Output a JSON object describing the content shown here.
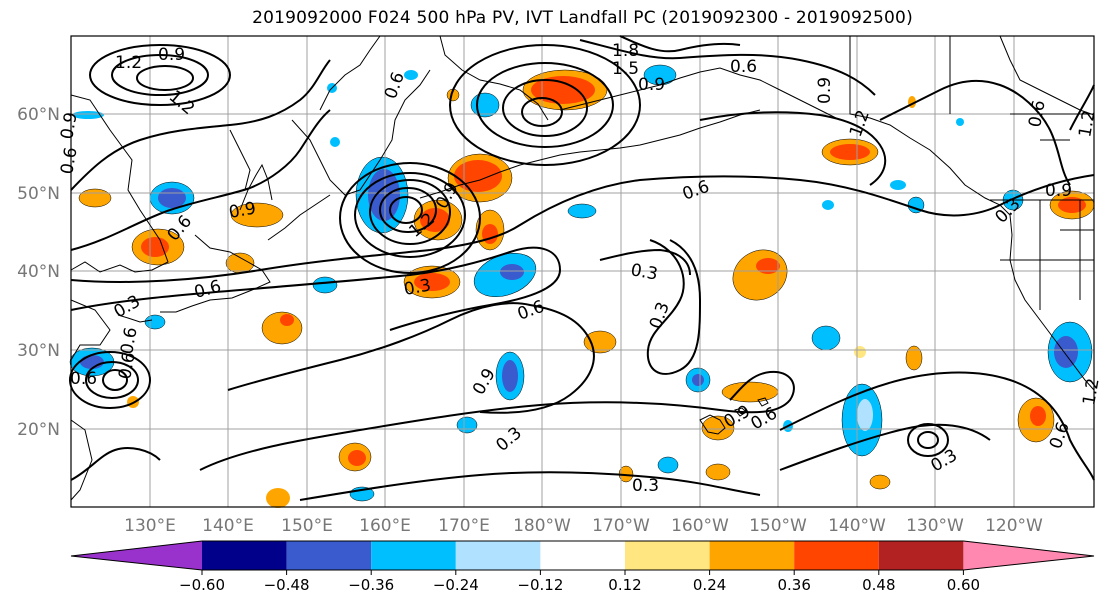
{
  "title": "2019092000 F024 500 hPa PV, IVT Landfall PC (2019092300 - 2019092500)",
  "lat_labels": [
    "60°N",
    "50°N",
    "40°N",
    "30°N",
    "20°N"
  ],
  "lon_labels": [
    "130°E",
    "140°E",
    "150°E",
    "160°E",
    "170°E",
    "180°W",
    "170°W",
    "160°W",
    "150°W",
    "140°W",
    "130°W",
    "120°W"
  ],
  "colorbar": {
    "tick_labels": [
      "−0.60",
      "−0.48",
      "−0.36",
      "−0.24",
      "−0.12",
      "0.12",
      "0.24",
      "0.36",
      "0.48",
      "0.60"
    ],
    "colors": [
      "#9932cc",
      "#00008b",
      "#3a5bcd",
      "#00bfff",
      "#b0e2ff",
      "#ffffff",
      "#ffe680",
      "#ffa500",
      "#ff4500",
      "#b22222",
      "#ff88b0"
    ]
  },
  "contour_labels": [
    "1.2",
    "0.9",
    "1.2",
    "0.9",
    "0.6",
    "1.8",
    "1.5",
    "0.9",
    "0.6",
    "0.9",
    "0.6",
    "1.2",
    "1.2",
    "0.9",
    "0.6",
    "0.6",
    "0.9",
    "1.2",
    "0.3",
    "0.6",
    "0.3",
    "0.9",
    "0.6",
    "0.3",
    "0.6",
    "0.3",
    "0.6",
    "0.9",
    "0.3",
    "0.3",
    "0.3",
    "0.6",
    "0.9",
    "0.6",
    "0.3",
    "0.6",
    "1.2",
    "0.6"
  ]
}
